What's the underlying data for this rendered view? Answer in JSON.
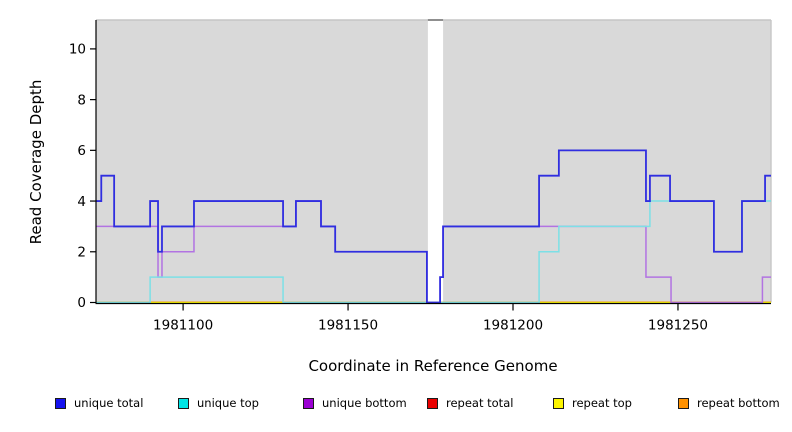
{
  "figure": {
    "x_axis_title": "Coordinate in Reference Genome",
    "y_axis_title": "Read Coverage Depth"
  },
  "legend": {
    "items": [
      {
        "label": "unique total",
        "color": "#1512ef"
      },
      {
        "label": "unique top",
        "color": "#00e6e6"
      },
      {
        "label": "unique bottom",
        "color": "#9b00d3"
      },
      {
        "label": "repeat total",
        "color": "#ea0000"
      },
      {
        "label": "repeat top",
        "color": "#fcf500"
      },
      {
        "label": "repeat bottom",
        "color": "#ff9100"
      }
    ]
  },
  "chart_data": {
    "type": "line",
    "subtype": "step-coverage",
    "title": "",
    "xlabel": "Coordinate in Reference Genome",
    "ylabel": "Read Coverage Depth",
    "x_domain": [
      1981073.6,
      1981278.2
    ],
    "y_domain": [
      0,
      11.1
    ],
    "x_ticks": [
      1981100,
      1981150,
      1981200,
      1981250
    ],
    "x_tick_labels": [
      "1981100",
      "1981150",
      "1981200",
      "1981250"
    ],
    "y_ticks": [
      0,
      2,
      4,
      6,
      8,
      10
    ],
    "y_tick_labels": [
      "0",
      "2",
      "4",
      "6",
      "8",
      "10"
    ],
    "grid": false,
    "plot_bg": "#d9d9d9",
    "gap_band": {
      "from": 1981174.2,
      "to": 1981178.8,
      "note": "white vertical stripe, no background"
    },
    "series": [
      {
        "name": "repeat total",
        "color": "#ea0000",
        "visible_color": "#ea0000",
        "points": [
          [
            1981073.6,
            0
          ]
        ],
        "end": 1981278.2
      },
      {
        "name": "repeat top",
        "color": "#fcf500",
        "visible_color": "#fcf500",
        "points": [
          [
            1981073.6,
            0
          ]
        ],
        "end": 1981278.2
      },
      {
        "name": "unique bottom",
        "color": "#9b00d3",
        "visible_color": "#b273e2",
        "points": [
          [
            1981073.6,
            3
          ],
          [
            1981092.4,
            1
          ],
          [
            1981093.6,
            2
          ],
          [
            1981103.3,
            3
          ],
          [
            1981134.2,
            4
          ],
          [
            1981141.8,
            3
          ],
          [
            1981146.1,
            2
          ],
          [
            1981173.9,
            0
          ],
          [
            1981177.9,
            1
          ],
          [
            1981178.8,
            3
          ],
          [
            1981240.3,
            1
          ],
          [
            1981247.9,
            0
          ],
          [
            1981275.6,
            1
          ]
        ],
        "end": 1981278.2
      },
      {
        "name": "unique top",
        "color": "#00e6e6",
        "visible_color": "#7ce0e6",
        "points": [
          [
            1981073.6,
            0
          ],
          [
            1981090,
            1
          ],
          [
            1981130.3,
            0
          ],
          [
            1981207.9,
            2
          ],
          [
            1981213.9,
            3
          ],
          [
            1981241.5,
            4
          ],
          [
            1981260.9,
            2
          ],
          [
            1981269.4,
            4
          ]
        ],
        "end": 1981278.2
      },
      {
        "name": "unique total",
        "color": "#1512ef",
        "visible_color": "#302ee0",
        "points": [
          [
            1981073.6,
            4
          ],
          [
            1981075.2,
            5
          ],
          [
            1981079.1,
            3
          ],
          [
            1981090,
            4
          ],
          [
            1981092.4,
            2
          ],
          [
            1981093.6,
            3
          ],
          [
            1981103.3,
            4
          ],
          [
            1981130.3,
            3
          ],
          [
            1981134.2,
            4
          ],
          [
            1981141.8,
            3
          ],
          [
            1981146.1,
            2
          ],
          [
            1981173.9,
            0
          ],
          [
            1981177.9,
            1
          ],
          [
            1981178.8,
            3
          ],
          [
            1981207.9,
            5
          ],
          [
            1981213.9,
            6
          ],
          [
            1981240.3,
            4
          ],
          [
            1981241.5,
            5
          ],
          [
            1981247.6,
            4
          ],
          [
            1981260.9,
            2
          ],
          [
            1981269.4,
            4
          ],
          [
            1981276.4,
            5
          ]
        ],
        "end": 1981278.2
      }
    ],
    "baseline_segments": [
      {
        "from": 1981073.6,
        "to": 1981090.0,
        "color": "#93cf93"
      },
      {
        "from": 1981090.0,
        "to": 1981130.3,
        "color": "#ff8f00"
      },
      {
        "from": 1981130.3,
        "to": 1981207.9,
        "color": "#93cf93"
      },
      {
        "from": 1981207.9,
        "to": 1981247.9,
        "color": "#ff8f00"
      },
      {
        "from": 1981247.9,
        "to": 1981275.6,
        "color": "#ca6b9c"
      },
      {
        "from": 1981275.6,
        "to": 1981278.2,
        "color": "#ff8f00"
      }
    ]
  }
}
